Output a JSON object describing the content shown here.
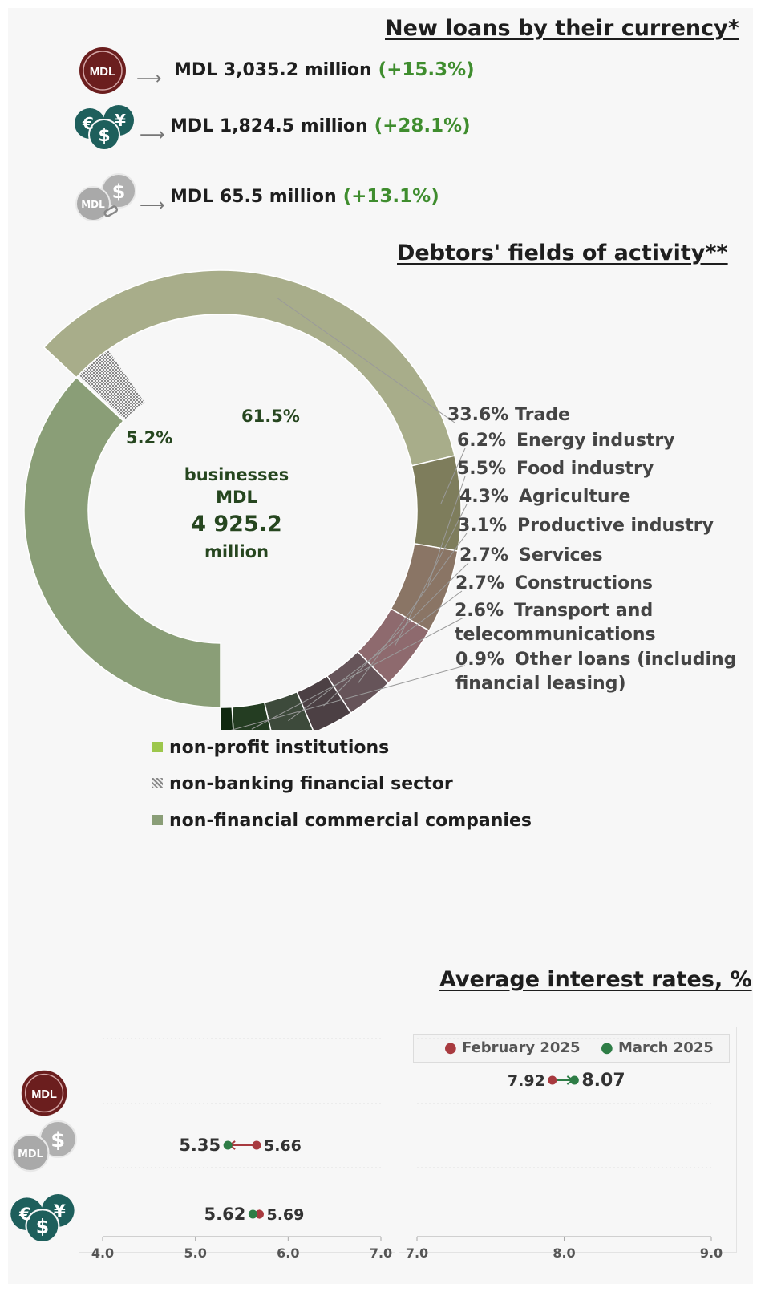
{
  "loans": {
    "title": "New loans by their currency*",
    "rows": [
      {
        "icon": "mdl-coin-icon",
        "amount": "MDL 3,035.2 million",
        "change": "(+15.3%)"
      },
      {
        "icon": "foreign-currency-coins-icon",
        "amount": "MDL 1,824.5 million",
        "change": "(+28.1%)"
      },
      {
        "icon": "mdl-indexed-coins-icon",
        "amount": "MDL 65.5 million",
        "change": "(+13.1%)"
      }
    ]
  },
  "debtors": {
    "title": "Debtors' fields of activity**",
    "center": {
      "line1": "businesses",
      "line2": "MDL",
      "value": "4 925.2",
      "unit": "million"
    },
    "inner_labels": {
      "commercial": "61.5%",
      "nonbanking": "5.2%"
    },
    "segments": [
      {
        "value": "33.6%",
        "label": "Trade"
      },
      {
        "value": "6.2%",
        "label": "Energy industry"
      },
      {
        "value": "5.5%",
        "label": "Food industry"
      },
      {
        "value": "4.3%",
        "label": "Agriculture"
      },
      {
        "value": "3.1%",
        "label": "Productive industry"
      },
      {
        "value": "2.7%",
        "label": "Services"
      },
      {
        "value": "2.7%",
        "label": "Constructions"
      },
      {
        "value": "2.6%",
        "label": "Transport and",
        "label2": "telecommunications"
      },
      {
        "value": "0.9%",
        "label": "Other loans (including",
        "label2": "financial leasing)"
      }
    ],
    "legend": [
      "non-profit institutions",
      "non-banking financial sector",
      "non-financial commercial companies"
    ],
    "colors": {
      "nonprofit": "#9dc74c",
      "commercial": "#8a9e77",
      "trade": "#a8ad8a",
      "energy": "#7e7d5c",
      "food": "#8a7565",
      "agriculture": "#8e6a6e",
      "productive": "#665459",
      "services": "#4c4044",
      "constructions": "#3d4a3b",
      "transport": "#243d22",
      "other": "#10280f"
    }
  },
  "rates": {
    "title": "Average interest rates, %",
    "legend": {
      "feb": "February 2025",
      "mar": "March 2025"
    },
    "colors": {
      "feb": "#a83a3f",
      "mar": "#2e7d46"
    },
    "icons": [
      "mdl-coin-icon",
      "mdl-indexed-coins-icon",
      "foreign-currency-coins-icon"
    ]
  },
  "chart_data": {
    "type": "scatter",
    "title": "Average interest rates, %",
    "series": [
      {
        "name": "February 2025",
        "points": [
          {
            "category": "MDL",
            "x": 7.92
          },
          {
            "category": "MDL indexed",
            "x": 5.66
          },
          {
            "category": "Foreign currency",
            "x": 5.69
          }
        ]
      },
      {
        "name": "March 2025",
        "points": [
          {
            "category": "MDL",
            "x": 8.07
          },
          {
            "category": "MDL indexed",
            "x": 5.35
          },
          {
            "category": "Foreign currency",
            "x": 5.62
          }
        ]
      }
    ],
    "axes": [
      {
        "xlim": [
          4.0,
          7.0
        ],
        "ticks": [
          "4.0",
          "5.0",
          "6.0",
          "7.0"
        ]
      },
      {
        "xlim": [
          7.0,
          9.0
        ],
        "ticks": [
          "7.0",
          "8.0",
          "9.0"
        ]
      }
    ],
    "grid": true,
    "legend_position": "top"
  }
}
